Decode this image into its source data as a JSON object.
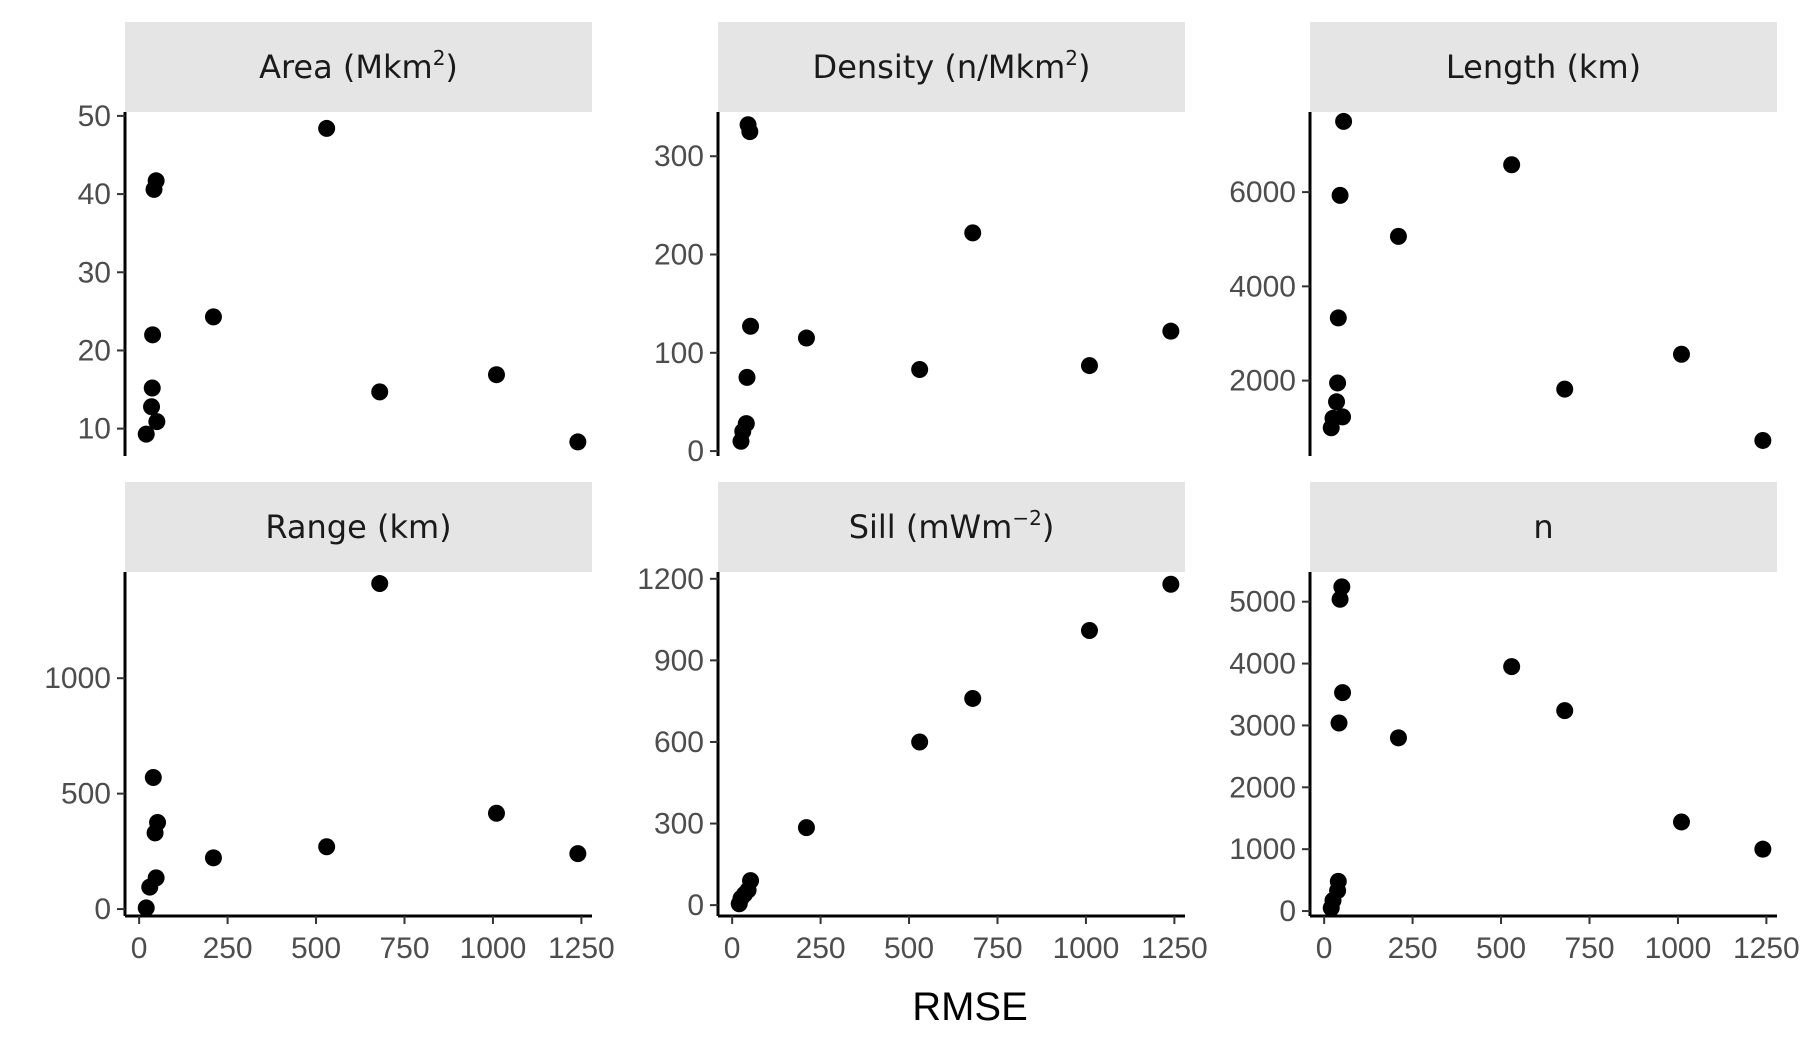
{
  "chart_data": {
    "type": "scatter",
    "layout": "facet-grid-3x2",
    "xlabel": "RMSE",
    "x_ticks": [
      0,
      250,
      500,
      750,
      1000,
      1250
    ],
    "xlim": [
      -40,
      1280
    ],
    "panels": [
      {
        "title_main": "Area ",
        "title_unit": "Mkm",
        "title_sup": "2",
        "ylim": [
          6.5,
          50.5
        ],
        "y_ticks": [
          10,
          20,
          30,
          40,
          50
        ],
        "points": [
          {
            "x": 20,
            "y": 9.3
          },
          {
            "x": 35,
            "y": 12.8
          },
          {
            "x": 37,
            "y": 15.2
          },
          {
            "x": 38,
            "y": 22.0
          },
          {
            "x": 42,
            "y": 40.6
          },
          {
            "x": 48,
            "y": 41.7
          },
          {
            "x": 50,
            "y": 10.9
          },
          {
            "x": 210,
            "y": 24.3
          },
          {
            "x": 530,
            "y": 48.4
          },
          {
            "x": 680,
            "y": 14.7
          },
          {
            "x": 1010,
            "y": 16.9
          },
          {
            "x": 1240,
            "y": 8.3
          }
        ]
      },
      {
        "title_main": "Density ",
        "title_unit": "n/Mkm",
        "title_sup": "2",
        "ylim": [
          -5,
          345
        ],
        "y_ticks": [
          0,
          100,
          200,
          300
        ],
        "points": [
          {
            "x": 25,
            "y": 10
          },
          {
            "x": 30,
            "y": 20
          },
          {
            "x": 40,
            "y": 28
          },
          {
            "x": 42,
            "y": 75
          },
          {
            "x": 45,
            "y": 332
          },
          {
            "x": 50,
            "y": 325
          },
          {
            "x": 52,
            "y": 127
          },
          {
            "x": 210,
            "y": 115
          },
          {
            "x": 530,
            "y": 83
          },
          {
            "x": 680,
            "y": 222
          },
          {
            "x": 1010,
            "y": 87
          },
          {
            "x": 1240,
            "y": 122
          }
        ]
      },
      {
        "title_main": "Length ",
        "title_unit": "km",
        "title_sup": "",
        "ylim": [
          400,
          7700
        ],
        "y_ticks": [
          2000,
          4000,
          6000
        ],
        "points": [
          {
            "x": 20,
            "y": 1000
          },
          {
            "x": 25,
            "y": 1200
          },
          {
            "x": 35,
            "y": 1550
          },
          {
            "x": 38,
            "y": 1950
          },
          {
            "x": 40,
            "y": 3330
          },
          {
            "x": 45,
            "y": 5930
          },
          {
            "x": 52,
            "y": 1230
          },
          {
            "x": 55,
            "y": 7500
          },
          {
            "x": 210,
            "y": 5060
          },
          {
            "x": 530,
            "y": 6580
          },
          {
            "x": 680,
            "y": 1820
          },
          {
            "x": 1010,
            "y": 2560
          },
          {
            "x": 1240,
            "y": 730
          }
        ]
      },
      {
        "title_main": "Range ",
        "title_unit": "km",
        "title_sup": "",
        "ylim": [
          -30,
          1460
        ],
        "y_ticks": [
          0,
          500,
          1000
        ],
        "points": [
          {
            "x": 20,
            "y": 5
          },
          {
            "x": 30,
            "y": 95
          },
          {
            "x": 40,
            "y": 570
          },
          {
            "x": 45,
            "y": 330
          },
          {
            "x": 48,
            "y": 135
          },
          {
            "x": 52,
            "y": 375
          },
          {
            "x": 210,
            "y": 222
          },
          {
            "x": 530,
            "y": 270
          },
          {
            "x": 680,
            "y": 1410
          },
          {
            "x": 1010,
            "y": 415
          },
          {
            "x": 1240,
            "y": 240
          }
        ]
      },
      {
        "title_main": "Sill ",
        "title_unit": "mWm",
        "title_sup": "−2",
        "ylim": [
          -40,
          1225
        ],
        "y_ticks": [
          0,
          300,
          600,
          900,
          1200
        ],
        "points": [
          {
            "x": 20,
            "y": 5
          },
          {
            "x": 25,
            "y": 25
          },
          {
            "x": 35,
            "y": 40
          },
          {
            "x": 45,
            "y": 55
          },
          {
            "x": 52,
            "y": 90
          },
          {
            "x": 210,
            "y": 285
          },
          {
            "x": 530,
            "y": 600
          },
          {
            "x": 680,
            "y": 760
          },
          {
            "x": 1010,
            "y": 1010
          },
          {
            "x": 1240,
            "y": 1180
          }
        ]
      },
      {
        "title_main": "n",
        "title_unit": "",
        "title_sup": "",
        "ylim": [
          -80,
          5480
        ],
        "y_ticks": [
          0,
          1000,
          2000,
          3000,
          4000,
          5000
        ],
        "points": [
          {
            "x": 20,
            "y": 50
          },
          {
            "x": 25,
            "y": 170
          },
          {
            "x": 38,
            "y": 330
          },
          {
            "x": 40,
            "y": 480
          },
          {
            "x": 42,
            "y": 3040
          },
          {
            "x": 45,
            "y": 5040
          },
          {
            "x": 50,
            "y": 5240
          },
          {
            "x": 52,
            "y": 3530
          },
          {
            "x": 210,
            "y": 2800
          },
          {
            "x": 530,
            "y": 3950
          },
          {
            "x": 680,
            "y": 3240
          },
          {
            "x": 1010,
            "y": 1440
          },
          {
            "x": 1240,
            "y": 1000
          }
        ]
      }
    ]
  }
}
